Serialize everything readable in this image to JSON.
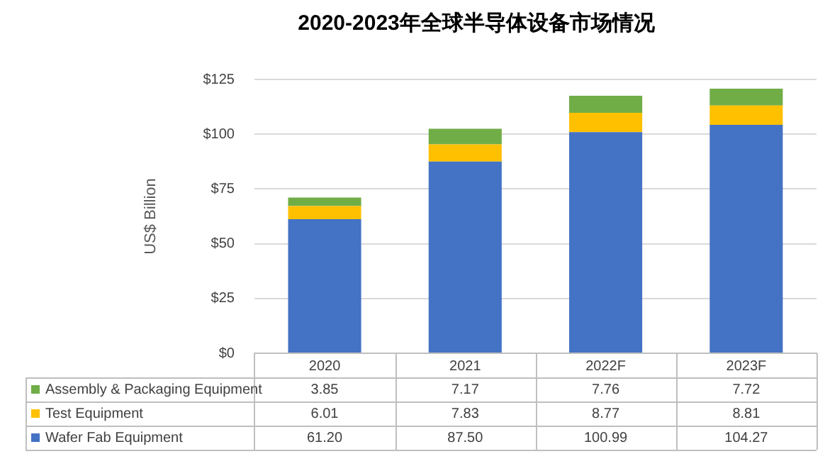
{
  "chart_data": {
    "type": "bar",
    "title": "2020-2023年全球半导体设备市场情况",
    "ylabel": "US$ Billion",
    "categories": [
      "2020",
      "2021",
      "2022F",
      "2023F"
    ],
    "stacked": true,
    "ylim": [
      0,
      125
    ],
    "yticks": [
      {
        "value": 0,
        "label": "$0"
      },
      {
        "value": 25,
        "label": "$25"
      },
      {
        "value": 50,
        "label": "$50"
      },
      {
        "value": 75,
        "label": "$75"
      },
      {
        "value": 100,
        "label": "$100"
      },
      {
        "value": 125,
        "label": "$125"
      }
    ],
    "grid": "y",
    "legend": "bottom",
    "series": [
      {
        "name": "Wafer Fab Equipment",
        "color": "#4472c4",
        "values": [
          61.2,
          87.5,
          100.99,
          104.27
        ],
        "value_labels": [
          "61.20",
          "87.50",
          "100.99",
          "104.27"
        ]
      },
      {
        "name": "Test Equipment",
        "color": "#ffc000",
        "values": [
          6.01,
          7.83,
          8.77,
          8.81
        ],
        "value_labels": [
          "6.01",
          "7.83",
          "8.77",
          "8.81"
        ]
      },
      {
        "name": "Assembly & Packaging Equipment",
        "color": "#70ad47",
        "values": [
          3.85,
          7.17,
          7.76,
          7.72
        ],
        "value_labels": [
          "3.85",
          "7.17",
          "7.76",
          "7.72"
        ]
      }
    ]
  }
}
